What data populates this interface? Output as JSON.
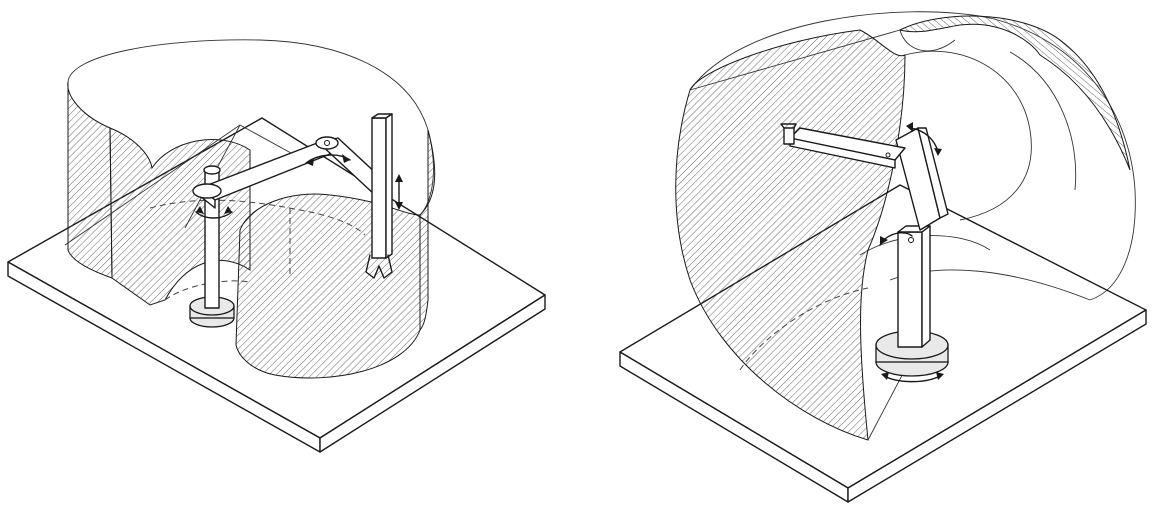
{
  "figure": {
    "panels": [
      {
        "robot": "scara-robot",
        "envelope": "cylindrical"
      },
      {
        "robot": "articulated-robot",
        "envelope": "spherical"
      }
    ],
    "colors": {
      "line": "#1a1a1a",
      "hatch": "#555555",
      "background": "#ffffff"
    }
  }
}
